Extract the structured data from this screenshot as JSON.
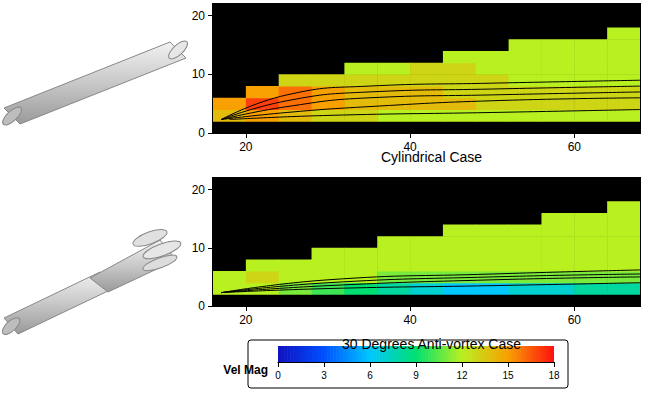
{
  "chart_data": [
    {
      "type": "heatmap",
      "title": "Cylindrical Case",
      "xlim": [
        16,
        68
      ],
      "xticks": [
        20,
        40,
        60
      ],
      "ylim": [
        0,
        22
      ],
      "yticks": [
        0,
        10,
        20
      ],
      "grid": false,
      "x_bins": [
        16,
        20,
        24,
        28,
        32,
        36,
        40,
        44,
        48,
        52,
        56,
        60,
        64,
        68
      ],
      "y_bins": [
        0,
        2,
        4,
        6,
        8,
        10,
        12,
        14,
        16,
        18,
        20,
        22
      ],
      "cells": [
        [
          null,
          null,
          null,
          null,
          null,
          null,
          null,
          null,
          null,
          null,
          null,
          null,
          null
        ],
        [
          14,
          15,
          14,
          13,
          13,
          12,
          12,
          12,
          12,
          12,
          12,
          12,
          12
        ],
        [
          15,
          17,
          16,
          15,
          14,
          14,
          14,
          14,
          13,
          13,
          13,
          13,
          13
        ],
        [
          null,
          15,
          16,
          15,
          14,
          14,
          14,
          13,
          13,
          13,
          13,
          13,
          13
        ],
        [
          null,
          null,
          13,
          13,
          13,
          13,
          13,
          13,
          13,
          12,
          12,
          12,
          12
        ],
        [
          null,
          null,
          null,
          null,
          12,
          12,
          13,
          13,
          12,
          12,
          12,
          12,
          12
        ],
        [
          null,
          null,
          null,
          null,
          null,
          null,
          null,
          12,
          12,
          12,
          12,
          12,
          12
        ],
        [
          null,
          null,
          null,
          null,
          null,
          null,
          null,
          null,
          null,
          12,
          12,
          12,
          12
        ],
        [
          null,
          null,
          null,
          null,
          null,
          null,
          null,
          null,
          null,
          null,
          null,
          null,
          12
        ],
        [
          null,
          null,
          null,
          null,
          null,
          null,
          null,
          null,
          null,
          null,
          null,
          null,
          null
        ],
        [
          null,
          null,
          null,
          null,
          null,
          null,
          null,
          null,
          null,
          null,
          null,
          null,
          null
        ]
      ],
      "streamlines": [
        {
          "x": [
            17,
            25,
            35,
            50,
            68
          ],
          "y": [
            2.3,
            3.5,
            4.5,
            5.5,
            6
          ]
        },
        {
          "x": [
            17,
            25,
            35,
            50,
            68
          ],
          "y": [
            2.3,
            4.5,
            6,
            6.5,
            7
          ]
        },
        {
          "x": [
            17,
            25,
            35,
            50,
            68
          ],
          "y": [
            2.3,
            5.5,
            7,
            7.5,
            8
          ]
        },
        {
          "x": [
            17,
            25,
            35,
            50,
            68
          ],
          "y": [
            2.3,
            6.5,
            8,
            8.5,
            9
          ]
        },
        {
          "x": [
            18,
            30,
            50,
            68
          ],
          "y": [
            2.3,
            3,
            3.5,
            4
          ]
        }
      ],
      "color": "#000000"
    },
    {
      "type": "heatmap",
      "title": "30 Degrees Anti-vortex Case",
      "xlim": [
        16,
        68
      ],
      "xticks": [
        20,
        40,
        60
      ],
      "ylim": [
        0,
        22
      ],
      "yticks": [
        0,
        10,
        20
      ],
      "grid": false,
      "x_bins": [
        16,
        20,
        24,
        28,
        32,
        36,
        40,
        44,
        48,
        52,
        56,
        60,
        64,
        68
      ],
      "y_bins": [
        0,
        2,
        4,
        6,
        8,
        10,
        12,
        14,
        16,
        18,
        20,
        22
      ],
      "cells": [
        [
          null,
          null,
          null,
          null,
          null,
          null,
          null,
          null,
          null,
          null,
          null,
          null,
          null
        ],
        [
          12,
          12,
          11,
          10,
          9,
          8,
          7,
          6,
          6,
          7,
          7,
          8,
          8
        ],
        [
          12,
          13,
          12,
          12,
          12,
          11,
          11,
          11,
          11,
          11,
          11,
          11,
          11
        ],
        [
          null,
          12,
          12,
          12,
          12,
          12,
          12,
          12,
          12,
          12,
          12,
          12,
          12
        ],
        [
          null,
          null,
          null,
          12,
          12,
          12,
          12,
          12,
          12,
          12,
          12,
          12,
          12
        ],
        [
          null,
          null,
          null,
          null,
          null,
          12,
          12,
          12,
          12,
          12,
          12,
          12,
          12
        ],
        [
          null,
          null,
          null,
          null,
          null,
          null,
          null,
          12,
          12,
          12,
          12,
          12,
          12
        ],
        [
          null,
          null,
          null,
          null,
          null,
          null,
          null,
          null,
          null,
          null,
          12,
          12,
          12
        ],
        [
          null,
          null,
          null,
          null,
          null,
          null,
          null,
          null,
          null,
          null,
          null,
          null,
          12
        ],
        [
          null,
          null,
          null,
          null,
          null,
          null,
          null,
          null,
          null,
          null,
          null,
          null,
          null
        ],
        [
          null,
          null,
          null,
          null,
          null,
          null,
          null,
          null,
          null,
          null,
          null,
          null,
          null
        ]
      ],
      "streamlines": [
        {
          "x": [
            17,
            30,
            50,
            68
          ],
          "y": [
            2.3,
            3.5,
            4.5,
            5
          ]
        },
        {
          "x": [
            17,
            30,
            50,
            68
          ],
          "y": [
            2.3,
            4,
            5,
            5.5
          ]
        },
        {
          "x": [
            17,
            30,
            50,
            68
          ],
          "y": [
            2.3,
            4.5,
            5.5,
            6.2
          ]
        },
        {
          "x": [
            17,
            30,
            50,
            68
          ],
          "y": [
            2.3,
            3,
            3.5,
            4
          ]
        }
      ],
      "color": "#000000"
    }
  ],
  "colorbar": {
    "label": "Vel Mag",
    "range": [
      0,
      18
    ],
    "ticks": [
      0,
      3,
      6,
      9,
      12,
      15,
      18
    ]
  }
}
